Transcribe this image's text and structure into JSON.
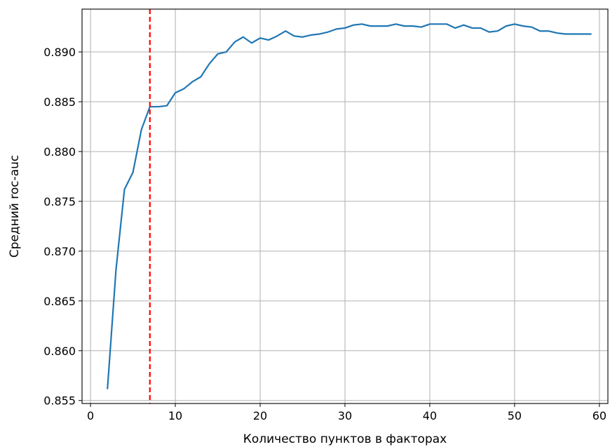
{
  "chart_data": {
    "type": "line",
    "title": "",
    "xlabel": "Количество пунктов в факторах",
    "ylabel": "Средний roc-auc",
    "xlim": [
      -1,
      61
    ],
    "ylim": [
      0.8547,
      0.8943
    ],
    "xticks": [
      0,
      10,
      20,
      30,
      40,
      50,
      60
    ],
    "xtick_labels": [
      "0",
      "10",
      "20",
      "30",
      "40",
      "50",
      "60"
    ],
    "yticks": [
      0.855,
      0.86,
      0.865,
      0.87,
      0.875,
      0.88,
      0.885,
      0.89
    ],
    "ytick_labels": [
      "0.855",
      "0.860",
      "0.865",
      "0.870",
      "0.875",
      "0.880",
      "0.885",
      "0.890"
    ],
    "grid": true,
    "legend": "none",
    "series": [
      {
        "color": "#1f77b4",
        "x": [
          2,
          3,
          4,
          5,
          6,
          7,
          8,
          9,
          10,
          11,
          12,
          13,
          14,
          15,
          16,
          17,
          18,
          19,
          20,
          21,
          22,
          23,
          24,
          25,
          26,
          27,
          28,
          29,
          30,
          31,
          32,
          33,
          34,
          35,
          36,
          37,
          38,
          39,
          40,
          41,
          42,
          43,
          44,
          45,
          46,
          47,
          48,
          49,
          50,
          51,
          52,
          53,
          54,
          55,
          56,
          57,
          58,
          59
        ],
        "y": [
          0.8562,
          0.8681,
          0.8762,
          0.8779,
          0.8822,
          0.8845,
          0.8845,
          0.8846,
          0.8859,
          0.8863,
          0.887,
          0.8875,
          0.8888,
          0.8898,
          0.89,
          0.891,
          0.8915,
          0.8909,
          0.8914,
          0.8912,
          0.8916,
          0.8921,
          0.8916,
          0.8915,
          0.8917,
          0.8918,
          0.892,
          0.8923,
          0.8924,
          0.8927,
          0.8928,
          0.8926,
          0.8926,
          0.8926,
          0.8928,
          0.8926,
          0.8926,
          0.8925,
          0.8928,
          0.8928,
          0.8928,
          0.8924,
          0.8927,
          0.8924,
          0.8924,
          0.892,
          0.8921,
          0.8926,
          0.8928,
          0.8926,
          0.8925,
          0.8921,
          0.8921,
          0.8919,
          0.8918,
          0.8918,
          0.8918,
          0.8918
        ]
      }
    ],
    "vline": {
      "x": 7,
      "color": "#ff0000",
      "style": "dashed"
    }
  }
}
